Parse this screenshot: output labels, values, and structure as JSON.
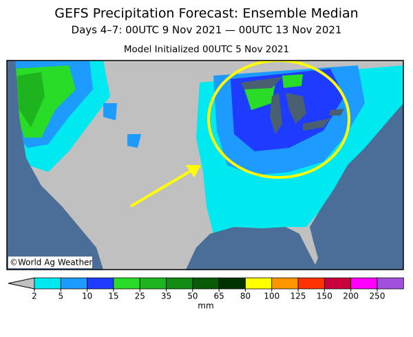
{
  "header": {
    "title": "GEFS Precipitation Forecast: Ensemble Median",
    "subtitle": "Days 4–7: 00UTC 9 Nov 2021 — 00UTC 13 Nov 2021",
    "init": "Model Initialized 00UTC 5 Nov 2021"
  },
  "map": {
    "credit": "©World Ag Weather"
  },
  "colorbar": {
    "levels": [
      2,
      5,
      10,
      15,
      25,
      35,
      50,
      65,
      80,
      100,
      125,
      150,
      200,
      250
    ],
    "colors": [
      "#00e8f0",
      "#1e9bff",
      "#1e3cff",
      "#28dc28",
      "#1eb41e",
      "#128c12",
      "#0a5a0a",
      "#003200",
      "#ffff00",
      "#ff9600",
      "#ff3200",
      "#c8003c",
      "#ff00ff",
      "#a050dc"
    ],
    "under_color": "#c0c0c0",
    "over_color": "#f4f4f4",
    "unit": "mm"
  }
}
